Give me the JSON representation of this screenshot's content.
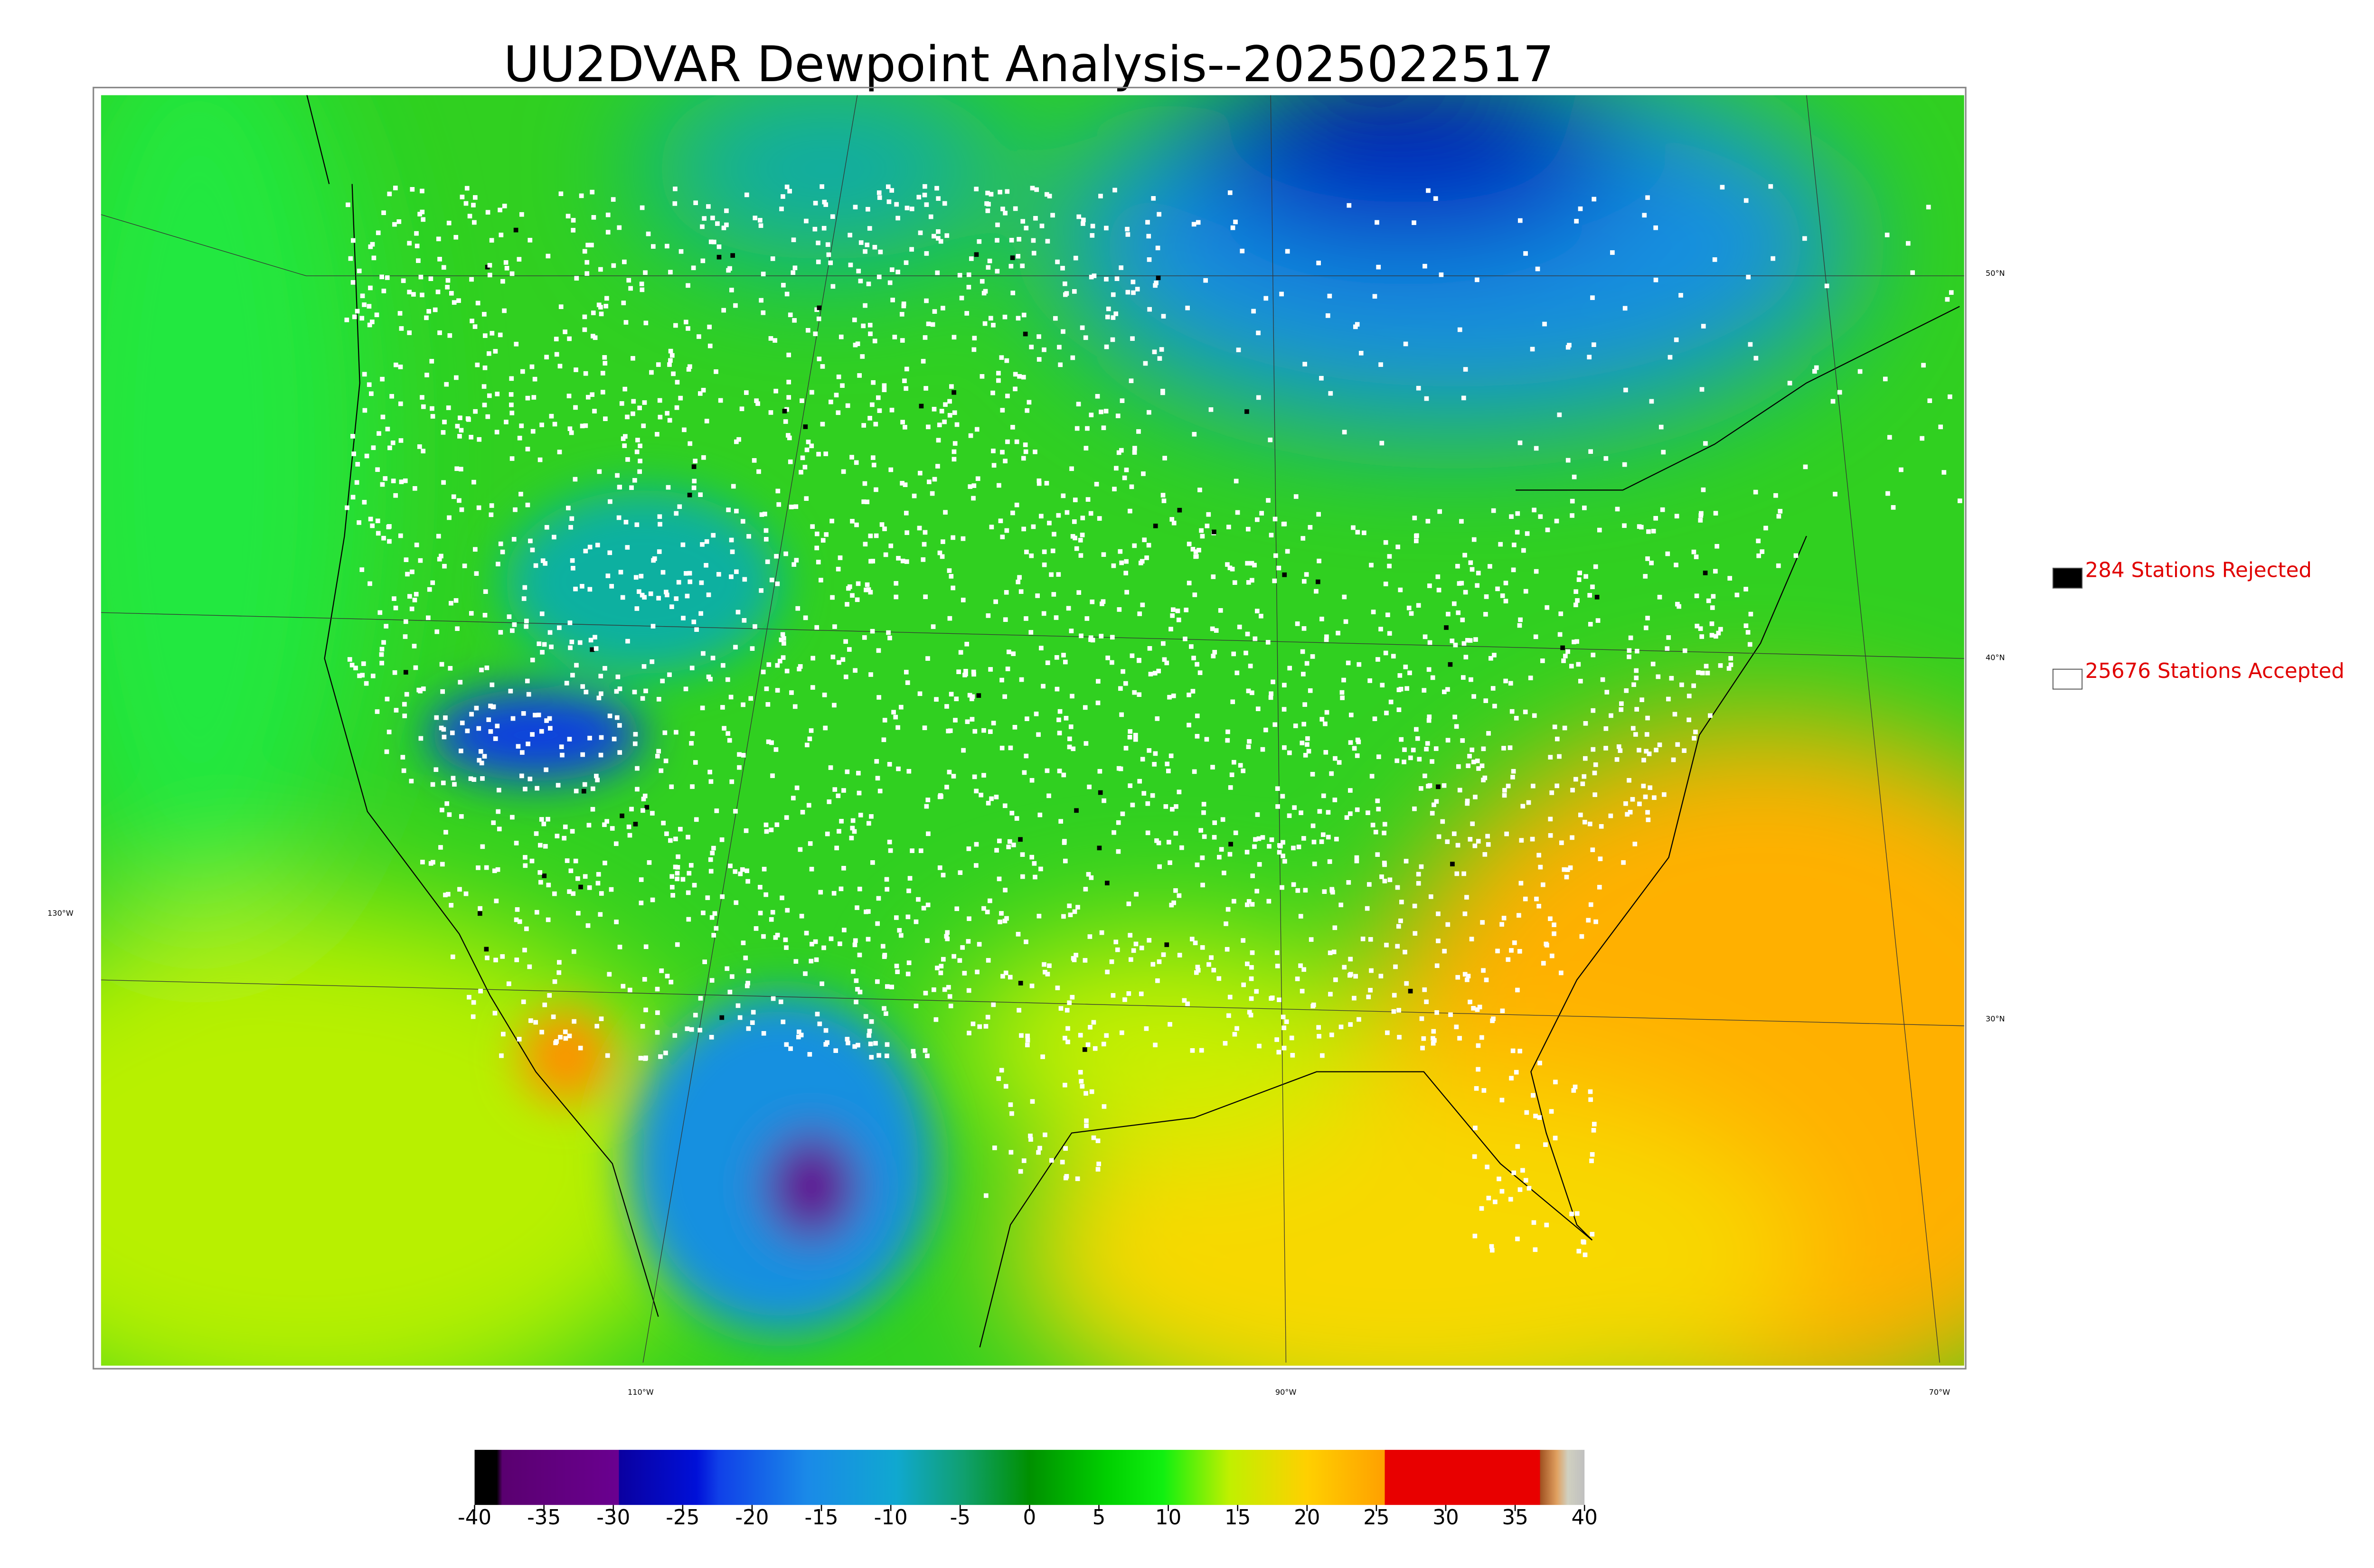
{
  "title": "UU2DVAR Dewpoint Analysis--2025022517",
  "legend": [
    {
      "label": "284 Stations Rejected",
      "fill": "#000000"
    },
    {
      "label": "25676 Stations Accepted",
      "fill": "#ffffff"
    }
  ],
  "colorbar": {
    "range": [
      -40,
      40
    ],
    "ticks": [
      -40,
      -35,
      -30,
      -25,
      -20,
      -15,
      -10,
      -5,
      0,
      5,
      10,
      15,
      20,
      25,
      30,
      35,
      40
    ]
  },
  "latitude_labels": [
    "50°N",
    "40°N",
    "30°N"
  ],
  "longitude_labels": [
    "130°W",
    "110°W",
    "90°W",
    "70°W"
  ]
}
